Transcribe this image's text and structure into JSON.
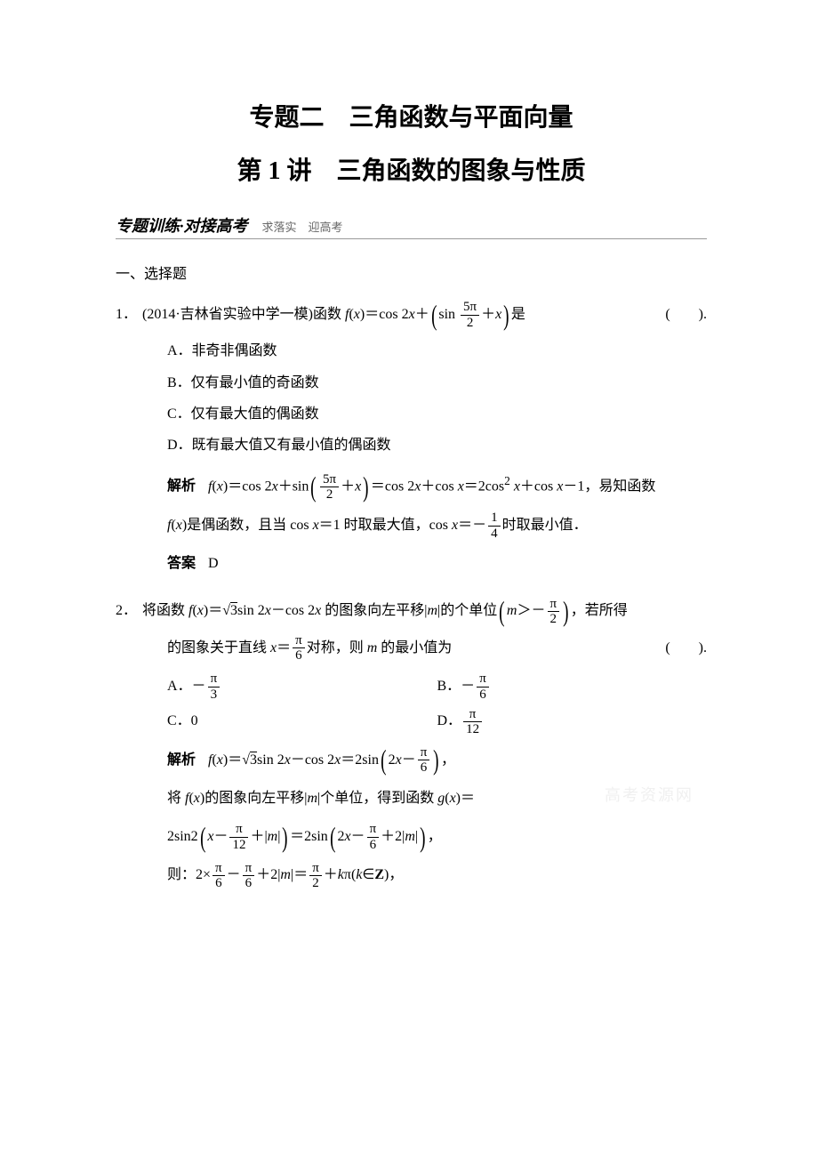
{
  "title_main": "专题二　三角函数与平面向量",
  "title_sub": "第 1 讲　三角函数的图象与性质",
  "banner": {
    "left": "专题训练·对接高考",
    "right": "求落实　迎高考"
  },
  "section_heading": "一、选择题",
  "q1": {
    "num": "1．",
    "source": "(2014·吉林省实验中学一模)",
    "stem_a": "函数 ",
    "stem_b": "是",
    "paren": "(　　).",
    "fx": "f",
    "x": "x",
    "eq": "＝cos 2",
    "plus": "＋",
    "sin": "sin ",
    "frac_num": "5π",
    "frac_den": "2",
    "optA": "A．非奇非偶函数",
    "optB": "B．仅有最小值的奇函数",
    "optC": "C．仅有最大值的偶函数",
    "optD": "D．既有最大值又有最小值的偶函数",
    "sol_label": "解析",
    "sol_a": "f",
    "sol_b": "(",
    "sol_c": "x",
    "sol_d": ")＝cos 2",
    "sol_e": "x",
    "sol_f": "＋sin",
    "sol_g": "＝cos 2",
    "sol_h": "＋cos ",
    "sol_i": "＝2cos",
    "sol_sup": "2",
    "sol_j": "＋cos ",
    "sol_k": "－1，易知函数",
    "sol_line2a": "f",
    "sol_line2b": "(",
    "sol_line2c": "x",
    "sol_line2d": ")是偶函数，且当 cos ",
    "sol_line2e": "x",
    "sol_line2f": "＝1 时取最大值，cos ",
    "sol_line2g": "x",
    "sol_line2h": "＝－",
    "sol_frac_num": "1",
    "sol_frac_den": "4",
    "sol_line2i": "时取最小值．",
    "ans_label": "答案",
    "ans": "D"
  },
  "q2": {
    "num": "2．",
    "stem_a": "将函数 ",
    "fx": "f",
    "x": "x",
    "eq": "＝",
    "sqrt3": "3",
    "sin2x": "sin 2",
    "minus": "－cos 2",
    "tail": " 的图象向左平移|",
    "m": "m",
    "tail2": "|的个单位",
    "mgt": "m",
    "gt": "＞－",
    "frac_num": "π",
    "frac_den": "2",
    "tail3": "，若所得",
    "line2a": "的图象关于直线 ",
    "line2b": "x",
    "line2c": "＝",
    "frac2_num": "π",
    "frac2_den": "6",
    "line2d": "对称，则 ",
    "line2e": "m",
    "line2f": " 的最小值为",
    "paren": "(　　).",
    "optA_label": "A．－",
    "optA_num": "π",
    "optA_den": "3",
    "optB_label": "B．－",
    "optB_num": "π",
    "optB_den": "6",
    "optC": "C．0",
    "optD_label": "D．",
    "optD_num": "π",
    "optD_den": "12",
    "sol_label": "解析",
    "s1a": "f",
    "s1b": "(",
    "s1c": "x",
    "s1d": ")＝",
    "s1e": "3",
    "s1f": "sin 2",
    "s1g": "x",
    "s1h": "－cos 2",
    "s1i": "x",
    "s1j": "＝2sin",
    "s1k": "2",
    "s1l": "x",
    "s1m": "－",
    "s1_num": "π",
    "s1_den": "6",
    "s1n": "，",
    "s2": "将 ",
    "s2a": "f",
    "s2b": "(",
    "s2c": "x",
    "s2d": ")的图象向左平移|",
    "s2e": "m",
    "s2f": "|个单位，得到函数 ",
    "s2g": "g",
    "s2h": "(",
    "s2i": "x",
    "s2j": ")＝",
    "s3a": "2sin2",
    "s3b": "x",
    "s3c": "－",
    "s3_num1": "π",
    "s3_den1": "12",
    "s3d": "＋|",
    "s3e": "m",
    "s3f": "|",
    "s3g": "＝2sin",
    "s3h": "2",
    "s3i": "x",
    "s3j": "－",
    "s3_num2": "π",
    "s3_den2": "6",
    "s3k": "＋2|",
    "s3l": "m",
    "s3m": "|",
    "s3n": "，",
    "s4a": "则：2×",
    "s4_num1": "π",
    "s4_den1": "6",
    "s4b": "－",
    "s4_num2": "π",
    "s4_den2": "6",
    "s4c": "＋2|",
    "s4d": "m",
    "s4e": "|＝",
    "s4_num3": "π",
    "s4_den3": "2",
    "s4f": "＋",
    "s4g": "k",
    "s4h": "π(",
    "s4i": "k",
    "s4j": "∈",
    "s4k": "Z",
    "s4l": ")，"
  },
  "watermark": "高考资源网"
}
